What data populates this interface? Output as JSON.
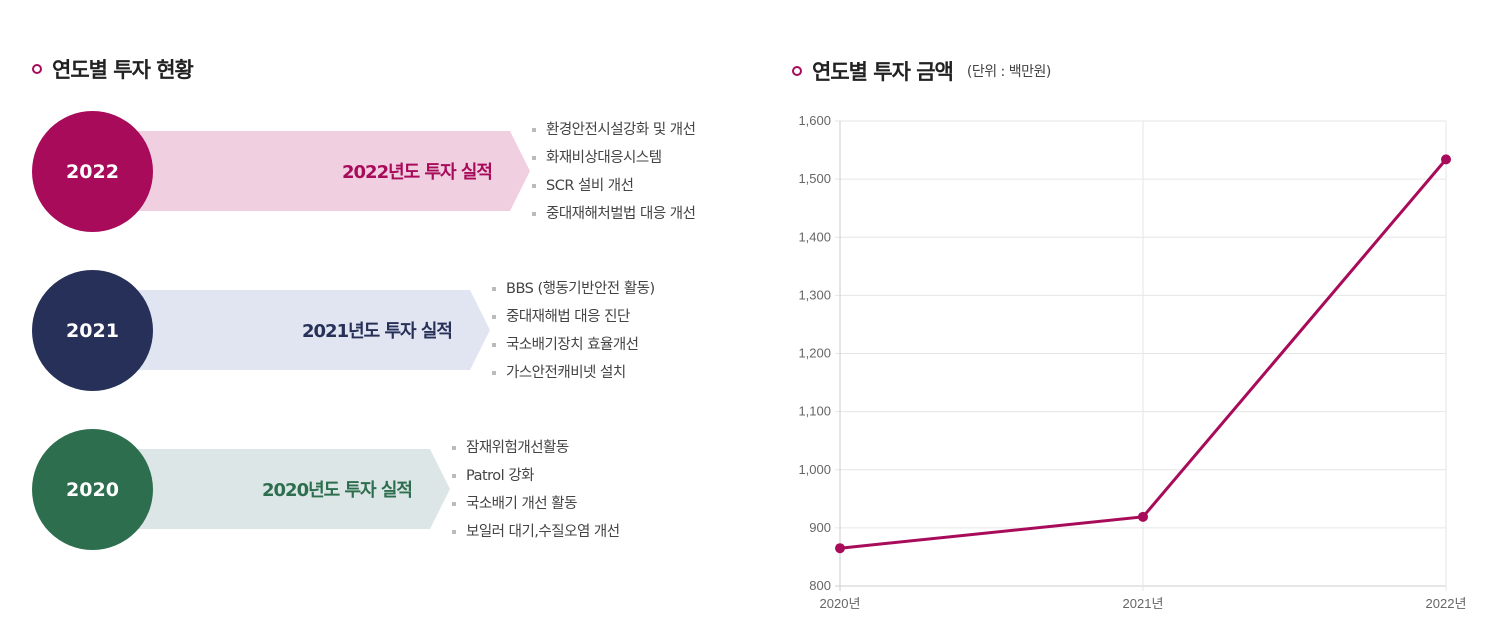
{
  "left": {
    "title": "연도별 투자 현황",
    "years": [
      {
        "year": "2022",
        "label": "2022년도 투자 실적",
        "color": "#a80b5a",
        "band": "#f0d0e0",
        "items": [
          "환경안전시설강화 및 개선",
          "화재비상대응시스템",
          "SCR 설비 개선",
          "중대재해처벌법 대응 개선"
        ]
      },
      {
        "year": "2021",
        "label": "2021년도 투자 실적",
        "color": "#263058",
        "band": "#e1e5f1",
        "items": [
          "BBS (행동기반안전 활동)",
          "중대재해법 대응 진단",
          "국소배기장치 효율개선",
          "가스안전캐비넷 설치"
        ]
      },
      {
        "year": "2020",
        "label": "2020년도 투자 실적",
        "color": "#2d6e4f",
        "band": "#dde6e6",
        "items": [
          "잠재위험개선활동",
          "Patrol 강화",
          "국소배기 개선 활동",
          "보일러 대기,수질오염 개선"
        ]
      }
    ]
  },
  "right": {
    "title": "연도별 투자 금액",
    "unit": "(단위 : 백만원)"
  },
  "chart_data": {
    "type": "line",
    "categories": [
      "2020년",
      "2021년",
      "2022년"
    ],
    "values": [
      865,
      919,
      1534
    ],
    "ylim": [
      800,
      1600
    ],
    "yticks": [
      "800",
      "900",
      "1,000",
      "1,100",
      "1,200",
      "1,300",
      "1,400",
      "1,500",
      "1,600"
    ],
    "grid": true,
    "color": "#a80b5a"
  }
}
